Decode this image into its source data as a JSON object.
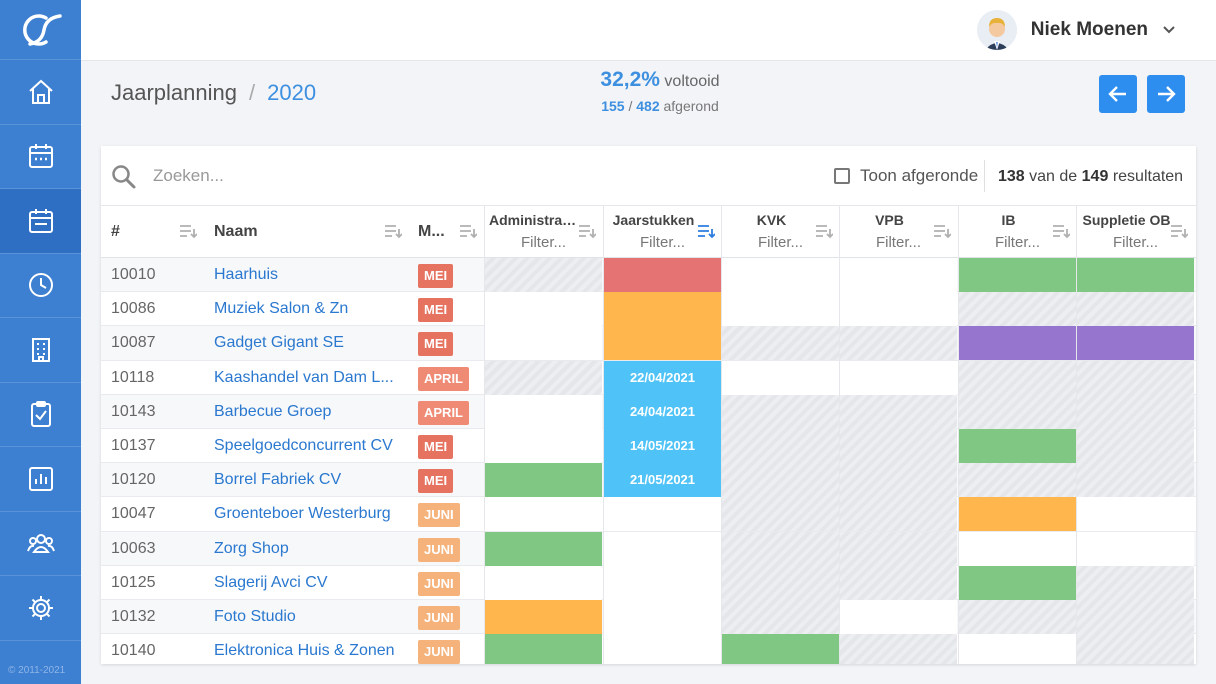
{
  "app": {
    "copyright": "© 2011-2021"
  },
  "user": {
    "name": "Niek Moenen"
  },
  "breadcrumb": {
    "root": "Jaarplanning",
    "separator": "/",
    "current": "2020"
  },
  "progress": {
    "percent": "32,2%",
    "label": "voltooid",
    "done": "155",
    "slash": "/",
    "total": "482",
    "done_label": "afgerond"
  },
  "search": {
    "placeholder": "Zoeken...",
    "value": ""
  },
  "toggle": {
    "label": "Toon afgeronde",
    "checked": false
  },
  "results": {
    "shown": "138",
    "mid": "van de",
    "total": "149",
    "suffix": "resultaten"
  },
  "columns": {
    "id": "#",
    "name": "Naam",
    "month": "M...",
    "filter_placeholder": "Filter...",
    "tasks": [
      "Administrati...",
      "Jaarstukken",
      "KVK",
      "VPB",
      "IB",
      "Suppletie OB"
    ]
  },
  "colors": {
    "accent": "#3d8fe0",
    "sidebar": "#3d7fd0",
    "red": "#e57373",
    "orange": "#ffb74d",
    "green": "#81c784",
    "purple": "#9575cd",
    "blue": "#4fc3f7",
    "badge_mei": "#e57360",
    "badge_april": "#ef8a74",
    "badge_juni": "#f5b27a"
  },
  "rows": [
    {
      "id": "10010",
      "name": "Haarhuis",
      "month": "MEI",
      "cells": [
        "hatch",
        "red",
        "white",
        "white",
        "green",
        "green"
      ]
    },
    {
      "id": "10086",
      "name": "Muziek Salon & Zn",
      "month": "MEI",
      "cells": [
        "white",
        "orange",
        "white",
        "white",
        "hatch",
        "hatch"
      ]
    },
    {
      "id": "10087",
      "name": "Gadget Gigant SE",
      "month": "MEI",
      "cells": [
        "white",
        "orange",
        "hatch",
        "hatch",
        "purple",
        "purple"
      ]
    },
    {
      "id": "10118",
      "name": "Kaashandel van Dam L...",
      "month": "APRIL",
      "cells": [
        "hatch",
        "blue:22/04/2021",
        "white",
        "white",
        "hatch",
        "hatch"
      ]
    },
    {
      "id": "10143",
      "name": "Barbecue Groep",
      "month": "APRIL",
      "cells": [
        "white",
        "blue:24/04/2021",
        "hatch",
        "hatch",
        "hatch",
        "hatch"
      ]
    },
    {
      "id": "10137",
      "name": "Speelgoedconcurrent CV",
      "month": "MEI",
      "cells": [
        "white",
        "blue:14/05/2021",
        "hatch",
        "hatch",
        "green",
        "hatch"
      ]
    },
    {
      "id": "10120",
      "name": "Borrel Fabriek CV",
      "month": "MEI",
      "cells": [
        "green",
        "blue:21/05/2021",
        "hatch",
        "hatch",
        "hatch",
        "hatch"
      ]
    },
    {
      "id": "10047",
      "name": "Groenteboer Westerburg",
      "month": "JUNI",
      "cells": [
        "white",
        "white",
        "hatch",
        "hatch",
        "orange",
        "white"
      ]
    },
    {
      "id": "10063",
      "name": "Zorg Shop",
      "month": "JUNI",
      "cells": [
        "green",
        "white",
        "hatch",
        "hatch",
        "white",
        "white"
      ]
    },
    {
      "id": "10125",
      "name": "Slagerij Avci CV",
      "month": "JUNI",
      "cells": [
        "white",
        "white",
        "hatch",
        "hatch",
        "green",
        "hatch"
      ]
    },
    {
      "id": "10132",
      "name": "Foto Studio",
      "month": "JUNI",
      "cells": [
        "orange",
        "white",
        "hatch",
        "white",
        "hatch",
        "hatch"
      ]
    },
    {
      "id": "10140",
      "name": "Elektronica Huis & Zonen",
      "month": "JUNI",
      "cells": [
        "green",
        "white",
        "green",
        "hatch",
        "white",
        "hatch"
      ]
    }
  ]
}
